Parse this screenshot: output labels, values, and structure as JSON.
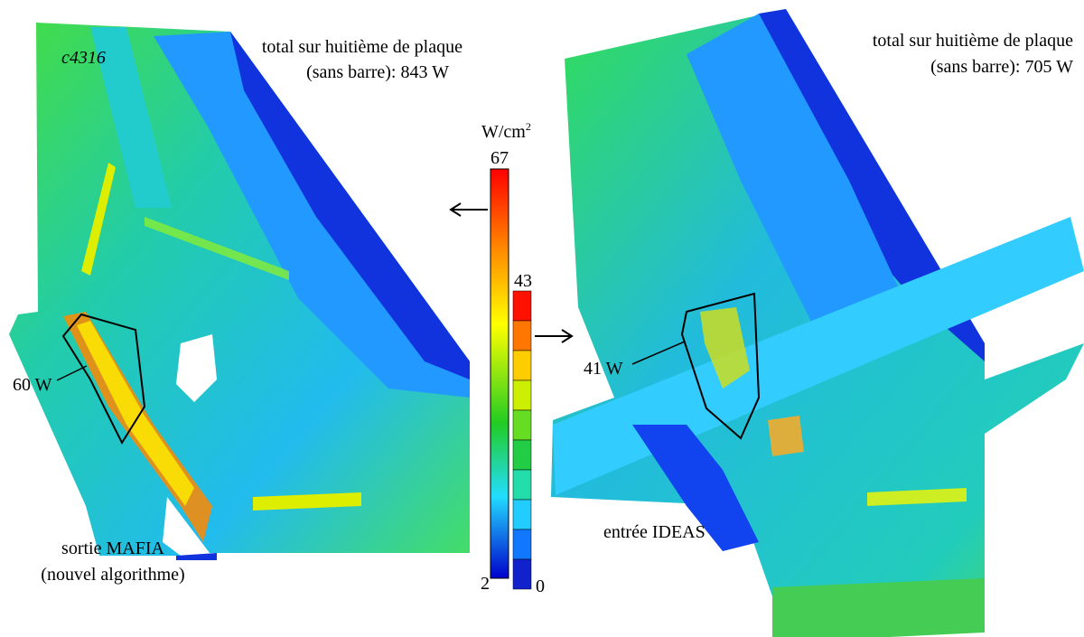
{
  "left_panel": {
    "label": "c4316",
    "total": [
      "total sur huitième de plaque",
      "(sans barre): 843 W"
    ],
    "region_power": "60 W",
    "caption": [
      "sortie MAFIA",
      "(nouvel algorithme)"
    ]
  },
  "right_panel": {
    "total": [
      "total sur huitième de plaque",
      "(sans barre): 705 W"
    ],
    "region_power": "41 W",
    "caption": "entrée IDEAS"
  },
  "colorbar": {
    "unit": "W/cm",
    "unit_exponent": "2",
    "continuous": {
      "max": "67",
      "min": "2"
    },
    "discrete": {
      "max": "43",
      "min": "0"
    }
  }
}
